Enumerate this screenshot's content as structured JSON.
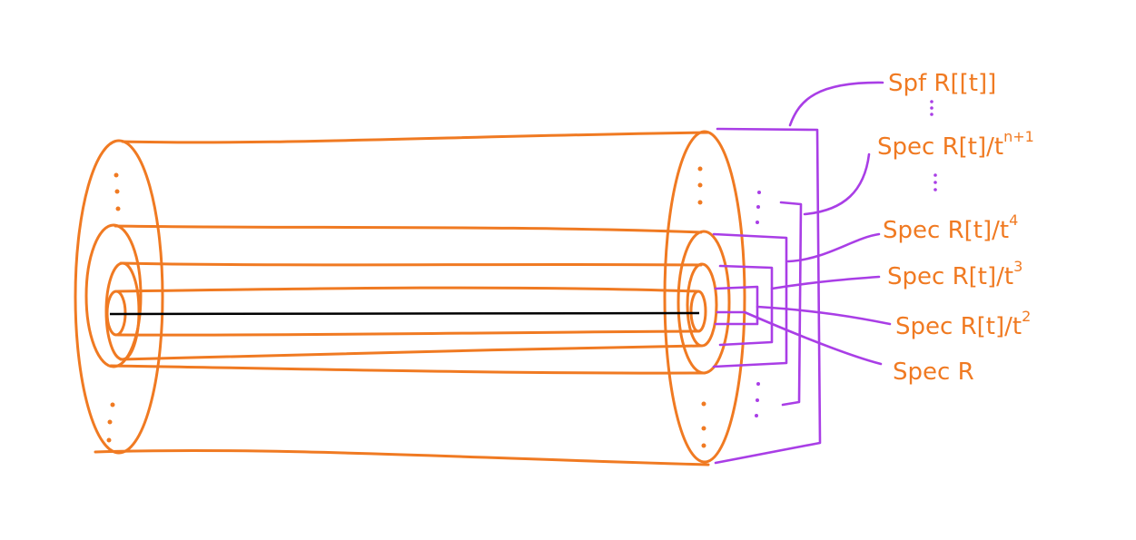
{
  "colors": {
    "tube": "#f07a22",
    "bracket": "#a93ee6",
    "axis": "#000000",
    "label": "#f07a22"
  },
  "labels": {
    "spf": "Spf R[[t]]",
    "spec_n1_base": "Spec R[t]/t",
    "spec_n1_exp": "n+1",
    "spec4_base": "Spec R[t]/t",
    "spec4_exp": "4",
    "spec3_base": "Spec R[t]/t",
    "spec3_exp": "3",
    "spec2_base": "Spec R[t]/t",
    "spec2_exp": "2",
    "spec_r": "Spec R",
    "ellipsis": "⋮"
  }
}
